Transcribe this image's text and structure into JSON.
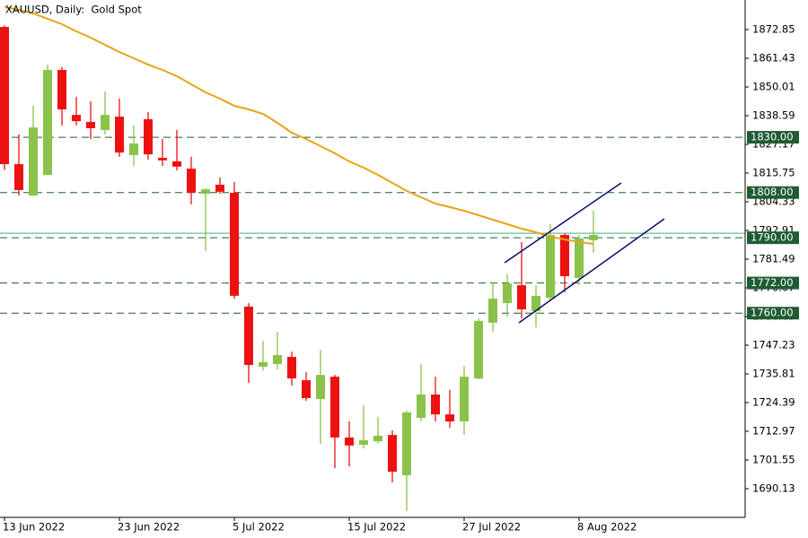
{
  "chart_data": {
    "type": "candlestick",
    "title": "XAUUSD, Daily:  Gold Spot",
    "categories": [
      "13 Jun 2022",
      null,
      null,
      null,
      null,
      null,
      null,
      null,
      "23 Jun 2022",
      null,
      null,
      null,
      null,
      null,
      null,
      null,
      "5 Jul 2022",
      null,
      null,
      null,
      null,
      null,
      null,
      null,
      "15 Jul 2022",
      null,
      null,
      null,
      null,
      null,
      null,
      null,
      "27 Jul 2022",
      null,
      null,
      null,
      null,
      null,
      null,
      null,
      "8 Aug 2022",
      null
    ],
    "open": [
      1873.9,
      1819.3,
      1806.8,
      1815.0,
      1856.8,
      1838.9,
      1836.1,
      1832.9,
      1838.2,
      1822.9,
      1837.2,
      1821.8,
      1820.4,
      1817.5,
      1807.5,
      1811.1,
      1807.9,
      1762.6,
      1738.7,
      1739.7,
      1742.6,
      1733.3,
      1725.8,
      1734.7,
      1710.5,
      1707.6,
      1709.0,
      1711.5,
      1695.5,
      1718.3,
      1727.6,
      1719.7,
      1716.9,
      1734.0,
      1756.2,
      1764.0,
      1771.1,
      1760.8,
      1766.1,
      1791.1,
      1774.0,
      1789.0
    ],
    "high": [
      1874.5,
      1831.1,
      1842.5,
      1858.9,
      1857.9,
      1846.1,
      1844.3,
      1848.2,
      1845.4,
      1834.7,
      1840.0,
      1829.3,
      1832.9,
      1822.2,
      1809.7,
      1814.0,
      1812.2,
      1764.0,
      1749.0,
      1752.6,
      1744.7,
      1736.5,
      1745.4,
      1735.4,
      1716.9,
      1723.3,
      1718.7,
      1713.3,
      1721.2,
      1739.7,
      1734.7,
      1729.4,
      1739.0,
      1757.9,
      1772.2,
      1775.4,
      1788.3,
      1771.1,
      1795.4,
      1791.8,
      1791.1,
      1800.8
    ],
    "low": [
      1817.0,
      1806.8,
      1806.8,
      1815.0,
      1834.7,
      1834.7,
      1829.3,
      1831.1,
      1822.2,
      1818.6,
      1821.1,
      1818.6,
      1816.8,
      1803.3,
      1784.7,
      1807.5,
      1765.8,
      1732.2,
      1737.2,
      1737.6,
      1731.2,
      1725.1,
      1708.0,
      1698.3,
      1699.0,
      1706.2,
      1708.0,
      1692.6,
      1681.2,
      1716.9,
      1716.9,
      1714.4,
      1711.5,
      1733.7,
      1752.6,
      1758.6,
      1757.9,
      1754.4,
      1765.1,
      1768.3,
      1771.1,
      1784.0
    ],
    "close": [
      1819.3,
      1809.0,
      1833.9,
      1856.8,
      1841.1,
      1836.4,
      1833.6,
      1838.9,
      1823.9,
      1827.5,
      1823.2,
      1820.8,
      1818.3,
      1807.9,
      1809.3,
      1808.3,
      1766.9,
      1739.4,
      1740.5,
      1743.3,
      1734.0,
      1726.2,
      1735.4,
      1710.5,
      1707.3,
      1709.4,
      1711.2,
      1696.9,
      1720.5,
      1727.6,
      1719.7,
      1716.9,
      1734.7,
      1756.9,
      1765.8,
      1771.8,
      1761.5,
      1766.9,
      1791.1,
      1774.7,
      1789.7,
      1791.1
    ],
    "up_color": "#8bc34a",
    "down_color": "#ee1111",
    "moving_average": {
      "color": "#e8a317",
      "values": [
        1881.78,
        1880.7,
        1879.28,
        1877.14,
        1875.0,
        1872.14,
        1869.64,
        1866.79,
        1863.93,
        1861.43,
        1858.93,
        1856.79,
        1854.29,
        1851.08,
        1847.87,
        1845.37,
        1842.52,
        1841.09,
        1839.3,
        1835.73,
        1831.81,
        1829.31,
        1826.45,
        1823.6,
        1820.39,
        1817.89,
        1815.04,
        1811.82,
        1808.61,
        1806.11,
        1803.61,
        1802.19,
        1800.76,
        1798.98,
        1797.19,
        1795.41,
        1793.62,
        1792.19,
        1790.41,
        1789.34,
        1788.27,
        1787.55
      ]
    },
    "levels": [
      {
        "value": 1830,
        "label": "1830.00"
      },
      {
        "value": 1808,
        "label": "1808.00"
      },
      {
        "value": 1790,
        "label": "1790.00"
      },
      {
        "value": 1772,
        "label": "1772.00"
      },
      {
        "value": 1760,
        "label": "1760.00"
      }
    ],
    "level_color": "#1f5c33",
    "price_line": 1791.8,
    "price_line_color": "#3cb371",
    "ylim": [
      1678.71,
      1884.63
    ],
    "yticks": [
      1872.85,
      1861.43,
      1850.01,
      1838.59,
      1827.17,
      1815.75,
      1804.33,
      1792.91,
      1781.49,
      1770.07,
      1758.65,
      1747.23,
      1735.81,
      1724.39,
      1712.97,
      1701.55,
      1690.13
    ]
  }
}
